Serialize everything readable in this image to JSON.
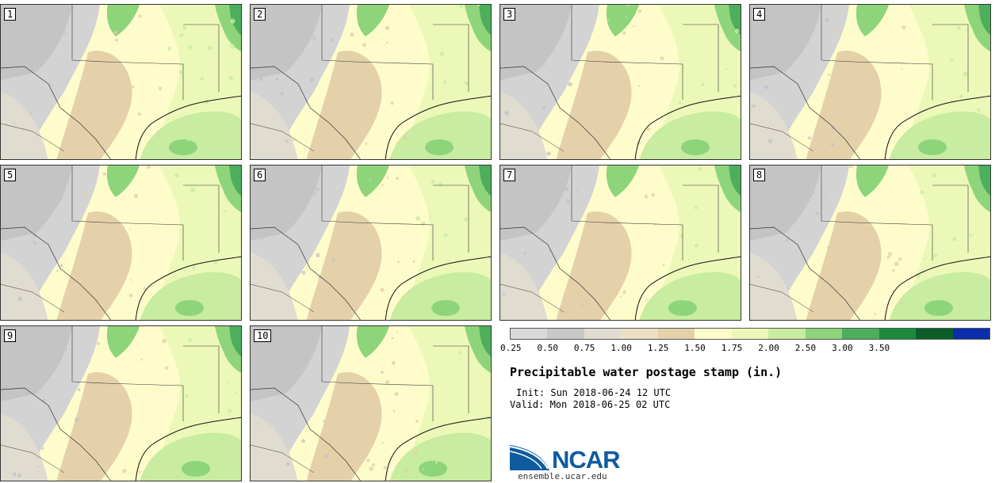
{
  "stamps": [
    "1",
    "2",
    "3",
    "4",
    "5",
    "6",
    "7",
    "8",
    "9",
    "10"
  ],
  "legend": {
    "colors": [
      "#d9d9d9",
      "#c8c8c8",
      "#e0dcd0",
      "#ece0c4",
      "#e4d1aa",
      "#fffccc",
      "#ecf8b8",
      "#c8eca0",
      "#8ed47a",
      "#4dae5c",
      "#1c8a3c",
      "#0b5e28",
      "#0a2eaa"
    ],
    "labels": [
      "0.25",
      "0.50",
      "0.75",
      "1.00",
      "1.25",
      "1.50",
      "1.75",
      "2.00",
      "2.50",
      "3.00",
      "3.50"
    ]
  },
  "title": "Precipitable water postage stamp (in.)",
  "init": "Init: Sun 2018-06-24 12 UTC",
  "valid": "Valid: Mon 2018-06-25 02 UTC",
  "logo": {
    "text": "NCAR",
    "url": "ensemble.ucar.edu"
  }
}
